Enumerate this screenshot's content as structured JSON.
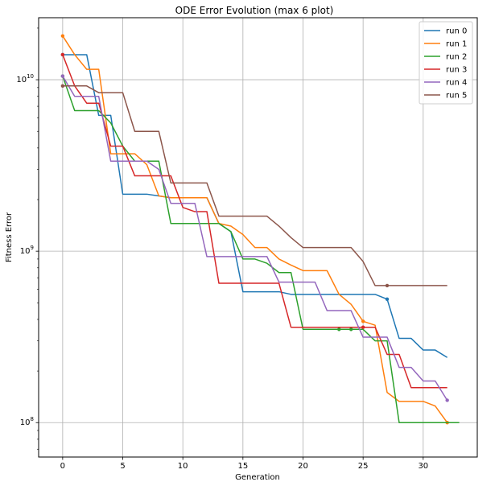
{
  "chart_data": {
    "type": "line",
    "title": "ODE Error Evolution (max 6 plot)",
    "xlabel": "Generation",
    "ylabel": "Fitness Error",
    "xlim": [
      -2,
      34.5
    ],
    "ylim": [
      63000000.0,
      23000000000.0
    ],
    "yscale": "log",
    "grid": true,
    "legend_position": "top-right",
    "x_ticks": [
      0,
      5,
      10,
      15,
      20,
      25,
      30
    ],
    "y_ticks": [
      {
        "value": 100000000.0,
        "label": "10^8"
      },
      {
        "value": 1000000000.0,
        "label": "10^9"
      },
      {
        "value": 10000000000.0,
        "label": "10^10"
      }
    ],
    "series": [
      {
        "name": "run 0",
        "color": "#1f77b4",
        "markers": [
          0,
          27
        ],
        "points": [
          [
            0,
            14000000000.0
          ],
          [
            1,
            14000000000.0
          ],
          [
            2,
            14000000000.0
          ],
          [
            3,
            6200000000.0
          ],
          [
            4,
            6200000000.0
          ],
          [
            5,
            2150000000.0
          ],
          [
            6,
            2150000000.0
          ],
          [
            7,
            2150000000.0
          ],
          [
            8,
            2100000000.0
          ],
          [
            9,
            2050000000.0
          ],
          [
            10,
            2050000000.0
          ],
          [
            11,
            2050000000.0
          ],
          [
            12,
            2050000000.0
          ],
          [
            13,
            1450000000.0
          ],
          [
            14,
            1300000000.0
          ],
          [
            15,
            580000000.0
          ],
          [
            16,
            580000000.0
          ],
          [
            17,
            580000000.0
          ],
          [
            18,
            580000000.0
          ],
          [
            19,
            560000000.0
          ],
          [
            20,
            560000000.0
          ],
          [
            21,
            560000000.0
          ],
          [
            22,
            560000000.0
          ],
          [
            23,
            560000000.0
          ],
          [
            24,
            560000000.0
          ],
          [
            25,
            560000000.0
          ],
          [
            26,
            560000000.0
          ],
          [
            27,
            525000000.0
          ],
          [
            28,
            310000000.0
          ],
          [
            29,
            310000000.0
          ],
          [
            30,
            265000000.0
          ],
          [
            31,
            265000000.0
          ],
          [
            32,
            240000000.0
          ]
        ]
      },
      {
        "name": "run 1",
        "color": "#ff7f0e",
        "markers": [
          0,
          25,
          32
        ],
        "points": [
          [
            0,
            18000000000.0
          ],
          [
            1,
            14000000000.0
          ],
          [
            2,
            11500000000.0
          ],
          [
            3,
            11500000000.0
          ],
          [
            4,
            3700000000.0
          ],
          [
            5,
            3700000000.0
          ],
          [
            6,
            3700000000.0
          ],
          [
            7,
            3200000000.0
          ],
          [
            8,
            2100000000.0
          ],
          [
            9,
            2050000000.0
          ],
          [
            10,
            2050000000.0
          ],
          [
            11,
            2050000000.0
          ],
          [
            12,
            2050000000.0
          ],
          [
            13,
            1450000000.0
          ],
          [
            14,
            1400000000.0
          ],
          [
            15,
            1250000000.0
          ],
          [
            16,
            1050000000.0
          ],
          [
            17,
            1050000000.0
          ],
          [
            18,
            900000000.0
          ],
          [
            19,
            830000000.0
          ],
          [
            20,
            770000000.0
          ],
          [
            21,
            770000000.0
          ],
          [
            22,
            770000000.0
          ],
          [
            23,
            560000000.0
          ],
          [
            24,
            490000000.0
          ],
          [
            25,
            390000000.0
          ],
          [
            26,
            370000000.0
          ],
          [
            27,
            150000000.0
          ],
          [
            28,
            133000000.0
          ],
          [
            29,
            133000000.0
          ],
          [
            30,
            133000000.0
          ],
          [
            31,
            125000000.0
          ],
          [
            32,
            100000000.0
          ]
        ]
      },
      {
        "name": "run 2",
        "color": "#2ca02c",
        "markers": [
          0,
          23,
          24
        ],
        "points": [
          [
            0,
            10500000000.0
          ],
          [
            1,
            6600000000.0
          ],
          [
            2,
            6600000000.0
          ],
          [
            3,
            6600000000.0
          ],
          [
            4,
            5600000000.0
          ],
          [
            5,
            4100000000.0
          ],
          [
            6,
            3350000000.0
          ],
          [
            7,
            3350000000.0
          ],
          [
            8,
            3350000000.0
          ],
          [
            9,
            1450000000.0
          ],
          [
            10,
            1450000000.0
          ],
          [
            11,
            1450000000.0
          ],
          [
            12,
            1450000000.0
          ],
          [
            13,
            1450000000.0
          ],
          [
            14,
            1300000000.0
          ],
          [
            15,
            900000000.0
          ],
          [
            16,
            900000000.0
          ],
          [
            17,
            850000000.0
          ],
          [
            18,
            750000000.0
          ],
          [
            19,
            750000000.0
          ],
          [
            20,
            350000000.0
          ],
          [
            21,
            350000000.0
          ],
          [
            22,
            350000000.0
          ],
          [
            23,
            350000000.0
          ],
          [
            24,
            350000000.0
          ],
          [
            25,
            350000000.0
          ],
          [
            26,
            300000000.0
          ],
          [
            27,
            300000000.0
          ],
          [
            28,
            100000000.0
          ],
          [
            29,
            100000000.0
          ],
          [
            30,
            100000000.0
          ],
          [
            31,
            100000000.0
          ],
          [
            32,
            100000000.0
          ],
          [
            33,
            100000000.0
          ]
        ]
      },
      {
        "name": "run 3",
        "color": "#d62728",
        "markers": [
          0,
          25
        ],
        "points": [
          [
            0,
            14000000000.0
          ],
          [
            1,
            9200000000.0
          ],
          [
            2,
            7300000000.0
          ],
          [
            3,
            7300000000.0
          ],
          [
            4,
            4100000000.0
          ],
          [
            5,
            4100000000.0
          ],
          [
            6,
            2750000000.0
          ],
          [
            7,
            2750000000.0
          ],
          [
            8,
            2750000000.0
          ],
          [
            9,
            2750000000.0
          ],
          [
            10,
            1800000000.0
          ],
          [
            11,
            1700000000.0
          ],
          [
            12,
            1700000000.0
          ],
          [
            13,
            650000000.0
          ],
          [
            14,
            650000000.0
          ],
          [
            15,
            650000000.0
          ],
          [
            16,
            650000000.0
          ],
          [
            17,
            650000000.0
          ],
          [
            18,
            650000000.0
          ],
          [
            19,
            360000000.0
          ],
          [
            20,
            360000000.0
          ],
          [
            21,
            360000000.0
          ],
          [
            22,
            360000000.0
          ],
          [
            23,
            360000000.0
          ],
          [
            24,
            360000000.0
          ],
          [
            25,
            360000000.0
          ],
          [
            26,
            360000000.0
          ],
          [
            27,
            250000000.0
          ],
          [
            28,
            250000000.0
          ],
          [
            29,
            160000000.0
          ],
          [
            30,
            160000000.0
          ],
          [
            31,
            160000000.0
          ],
          [
            32,
            160000000.0
          ]
        ]
      },
      {
        "name": "run 4",
        "color": "#9467bd",
        "markers": [
          0,
          32
        ],
        "points": [
          [
            0,
            10500000000.0
          ],
          [
            1,
            8000000000.0
          ],
          [
            2,
            8000000000.0
          ],
          [
            3,
            8000000000.0
          ],
          [
            4,
            3350000000.0
          ],
          [
            5,
            3350000000.0
          ],
          [
            6,
            3350000000.0
          ],
          [
            7,
            3350000000.0
          ],
          [
            8,
            3000000000.0
          ],
          [
            9,
            1900000000.0
          ],
          [
            10,
            1900000000.0
          ],
          [
            11,
            1900000000.0
          ],
          [
            12,
            930000000.0
          ],
          [
            13,
            930000000.0
          ],
          [
            14,
            930000000.0
          ],
          [
            15,
            930000000.0
          ],
          [
            16,
            930000000.0
          ],
          [
            17,
            930000000.0
          ],
          [
            18,
            660000000.0
          ],
          [
            19,
            660000000.0
          ],
          [
            20,
            660000000.0
          ],
          [
            21,
            660000000.0
          ],
          [
            22,
            450000000.0
          ],
          [
            23,
            450000000.0
          ],
          [
            24,
            450000000.0
          ],
          [
            25,
            315000000.0
          ],
          [
            26,
            315000000.0
          ],
          [
            27,
            315000000.0
          ],
          [
            28,
            210000000.0
          ],
          [
            29,
            210000000.0
          ],
          [
            30,
            175000000.0
          ],
          [
            31,
            175000000.0
          ],
          [
            32,
            135000000.0
          ]
        ]
      },
      {
        "name": "run 5",
        "color": "#8c564b",
        "markers": [
          0,
          27
        ],
        "points": [
          [
            0,
            9200000000.0
          ],
          [
            1,
            9200000000.0
          ],
          [
            2,
            9200000000.0
          ],
          [
            3,
            8400000000.0
          ],
          [
            4,
            8400000000.0
          ],
          [
            5,
            8400000000.0
          ],
          [
            6,
            5000000000.0
          ],
          [
            7,
            5000000000.0
          ],
          [
            8,
            5000000000.0
          ],
          [
            9,
            2500000000.0
          ],
          [
            10,
            2500000000.0
          ],
          [
            11,
            2500000000.0
          ],
          [
            12,
            2500000000.0
          ],
          [
            13,
            1600000000.0
          ],
          [
            14,
            1600000000.0
          ],
          [
            15,
            1600000000.0
          ],
          [
            16,
            1600000000.0
          ],
          [
            17,
            1600000000.0
          ],
          [
            18,
            1400000000.0
          ],
          [
            19,
            1200000000.0
          ],
          [
            20,
            1050000000.0
          ],
          [
            21,
            1050000000.0
          ],
          [
            22,
            1050000000.0
          ],
          [
            23,
            1050000000.0
          ],
          [
            24,
            1050000000.0
          ],
          [
            25,
            870000000.0
          ],
          [
            26,
            630000000.0
          ],
          [
            27,
            630000000.0
          ],
          [
            28,
            630000000.0
          ],
          [
            29,
            630000000.0
          ],
          [
            30,
            630000000.0
          ],
          [
            31,
            630000000.0
          ],
          [
            32,
            630000000.0
          ]
        ]
      }
    ]
  }
}
